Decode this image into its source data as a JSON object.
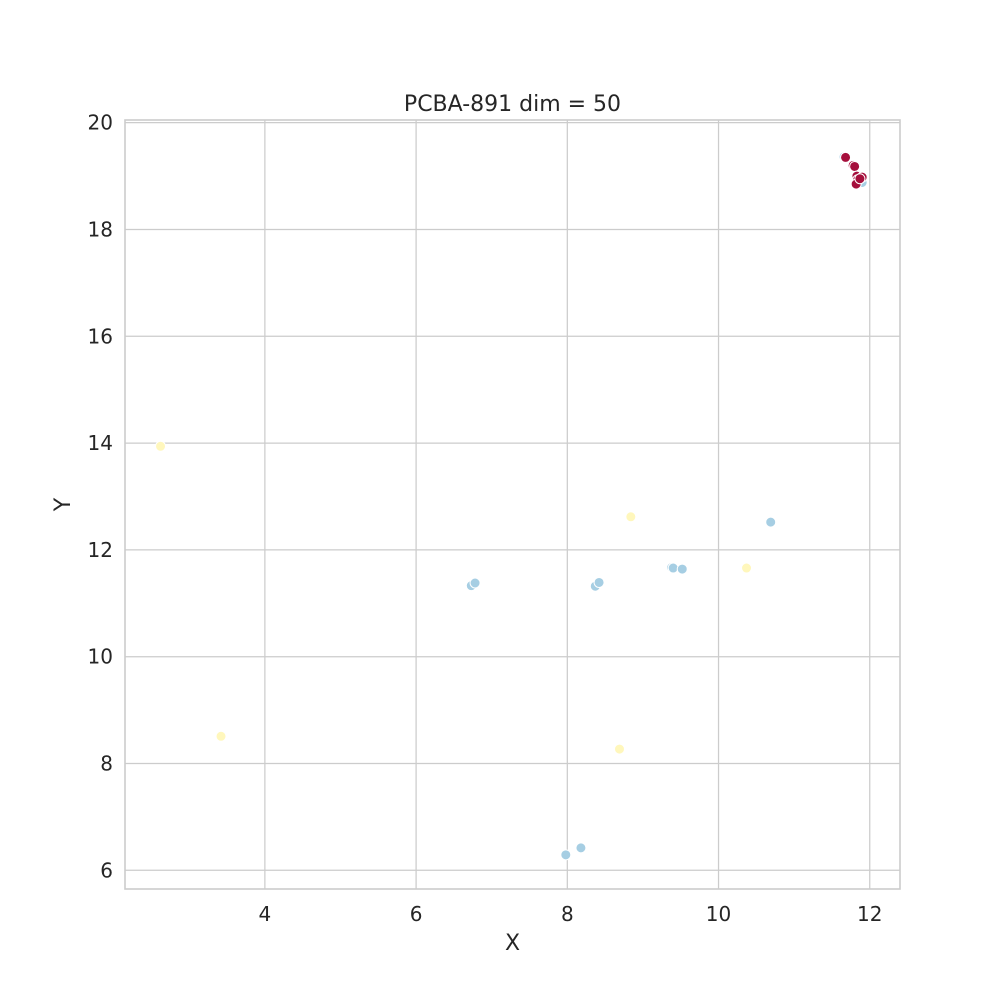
{
  "chart_data": {
    "type": "scatter",
    "title": "PCBA-891 dim = 50",
    "xlabel": "X",
    "ylabel": "Y",
    "xlim": [
      2.15,
      12.4
    ],
    "ylim": [
      5.65,
      20.05
    ],
    "xticks": [
      4,
      6,
      8,
      10,
      12
    ],
    "yticks": [
      6,
      8,
      10,
      12,
      14,
      16,
      18,
      20
    ],
    "grid": true,
    "legend": "none",
    "series": [
      {
        "color": "#a6cee3",
        "points": [
          [
            6.73,
            11.33
          ],
          [
            6.78,
            11.38
          ],
          [
            8.37,
            11.32
          ],
          [
            8.42,
            11.39
          ],
          [
            9.38,
            11.67
          ],
          [
            9.4,
            11.66
          ],
          [
            9.52,
            11.64
          ],
          [
            10.69,
            12.52
          ],
          [
            7.98,
            6.29
          ],
          [
            8.18,
            6.42
          ],
          [
            11.66,
            19.36
          ],
          [
            11.9,
            18.88
          ]
        ]
      },
      {
        "color": "#fff7bc",
        "points": [
          [
            2.62,
            13.94
          ],
          [
            3.42,
            8.51
          ],
          [
            8.84,
            12.62
          ],
          [
            8.69,
            8.27
          ],
          [
            10.37,
            11.66
          ]
        ]
      },
      {
        "color": "#a50f3c",
        "points": [
          [
            11.68,
            19.35
          ],
          [
            11.78,
            19.2
          ],
          [
            11.8,
            19.18
          ],
          [
            11.83,
            19.0
          ],
          [
            11.84,
            18.93
          ],
          [
            11.82,
            18.85
          ],
          [
            11.9,
            18.98
          ],
          [
            11.87,
            18.95
          ]
        ]
      }
    ]
  }
}
